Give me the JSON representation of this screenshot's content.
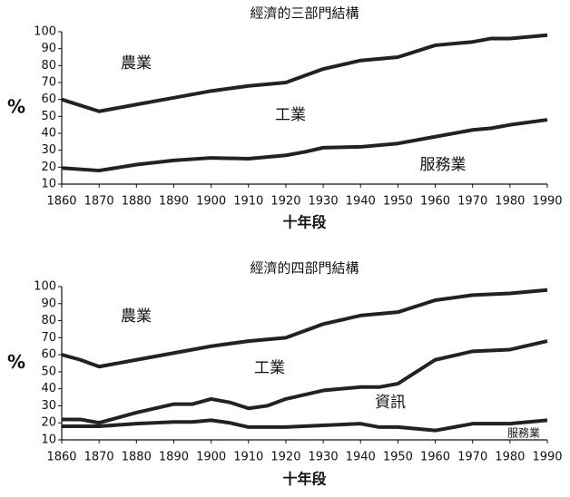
{
  "chart_data": [
    {
      "type": "line",
      "title": "經濟的三部門結構",
      "xlabel": "十年段",
      "ylabel": "%",
      "annotations": [
        "農業",
        "工業",
        "服務業"
      ],
      "x": [
        1860,
        1870,
        1880,
        1890,
        1900,
        1910,
        1920,
        1925,
        1930,
        1940,
        1950,
        1960,
        1970,
        1975,
        1980,
        1990
      ],
      "series": [
        {
          "color": "#222222",
          "values": [
            60,
            53,
            57,
            61,
            65,
            68,
            70,
            74,
            78,
            83,
            85,
            92,
            94,
            96,
            96,
            98
          ]
        },
        {
          "color": "#222222",
          "values": [
            19.5,
            18,
            21.5,
            24,
            25.5,
            25,
            27,
            29,
            31.5,
            32,
            34,
            38,
            42,
            43,
            45,
            48
          ]
        }
      ],
      "xlim": [
        1860,
        1990
      ],
      "xticks": [
        1860,
        1870,
        1880,
        1890,
        1900,
        1910,
        1920,
        1930,
        1940,
        1950,
        1960,
        1970,
        1980,
        1990
      ],
      "ylim": [
        10,
        100
      ],
      "yticks": [
        10,
        20,
        30,
        40,
        50,
        60,
        70,
        80,
        90,
        100
      ],
      "grid": false
    },
    {
      "type": "line",
      "title": "經濟的四部門結構",
      "xlabel": "十年段",
      "ylabel": "%",
      "annotations": [
        "農業",
        "工業",
        "資訊",
        "服務業"
      ],
      "x": [
        1860,
        1865,
        1870,
        1880,
        1890,
        1895,
        1900,
        1905,
        1910,
        1915,
        1920,
        1930,
        1940,
        1945,
        1950,
        1960,
        1970,
        1980,
        1990
      ],
      "series": [
        {
          "color": "#222222",
          "values": [
            60,
            57,
            53,
            57,
            61,
            63,
            65,
            66.5,
            68,
            69,
            70,
            78,
            83,
            84,
            85,
            92,
            95,
            96,
            98
          ]
        },
        {
          "color": "#222222",
          "values": [
            22,
            22,
            20,
            26,
            31,
            31,
            34,
            32,
            28.5,
            30,
            34,
            39,
            41,
            41,
            43,
            57,
            62,
            63,
            68
          ]
        },
        {
          "color": "#222222",
          "values": [
            18,
            18,
            18,
            19.5,
            20.5,
            20.5,
            21.5,
            20,
            17.5,
            17.5,
            17.5,
            18.5,
            19.5,
            17.5,
            17.5,
            15.5,
            19.5,
            19.5,
            21.5
          ]
        }
      ],
      "xlim": [
        1860,
        1990
      ],
      "xticks": [
        1860,
        1870,
        1880,
        1890,
        1900,
        1910,
        1920,
        1930,
        1940,
        1950,
        1960,
        1970,
        1980,
        1990
      ],
      "ylim": [
        10,
        100
      ],
      "yticks": [
        10,
        20,
        30,
        40,
        50,
        60,
        70,
        80,
        90,
        100
      ],
      "grid": false
    }
  ]
}
